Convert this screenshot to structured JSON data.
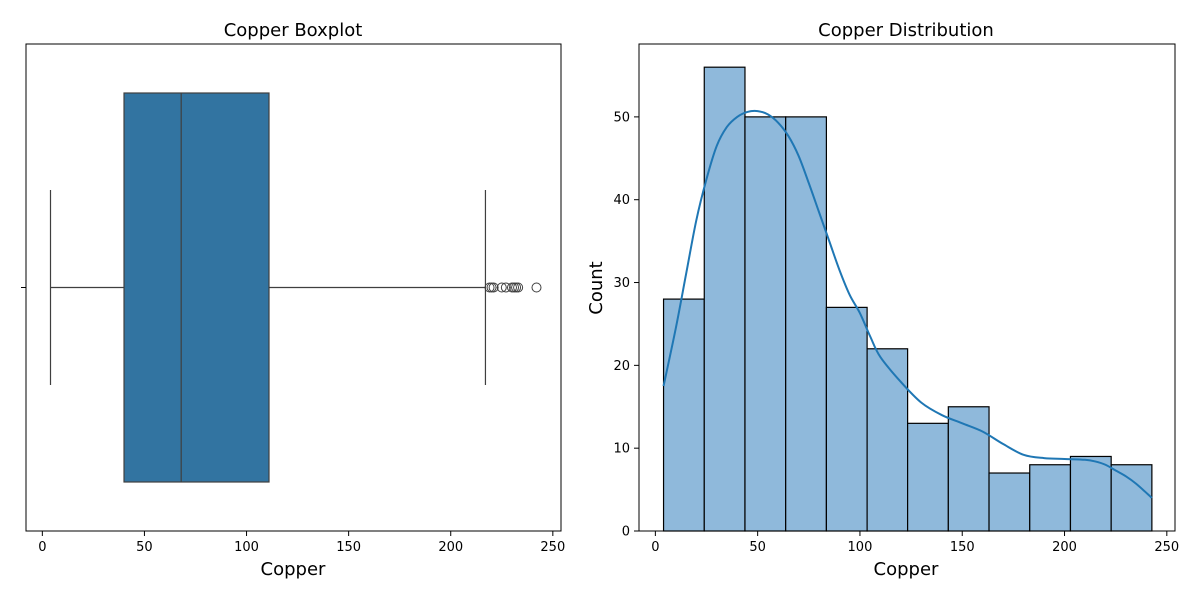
{
  "chart_data": [
    {
      "type": "box",
      "title": "Copper Boxplot",
      "xlabel": "Copper",
      "ylabel": "",
      "xlim": [
        -8,
        254
      ],
      "xticks": [
        0,
        50,
        100,
        150,
        200,
        250
      ],
      "box": {
        "whisker_low": 4,
        "q1": 40,
        "median": 68,
        "q3": 111,
        "whisker_high": 217
      },
      "outliers": [
        219,
        220,
        221,
        225,
        227,
        230,
        231,
        232,
        233,
        242
      ],
      "color": "#3274a1"
    },
    {
      "type": "histogram",
      "title": "Copper Distribution",
      "xlabel": "Copper",
      "ylabel": "Count",
      "xlim": [
        -8,
        254
      ],
      "ylim": [
        0,
        58.8
      ],
      "xticks": [
        0,
        50,
        100,
        150,
        200,
        250
      ],
      "yticks": [
        0,
        10,
        20,
        30,
        40,
        50
      ],
      "bins": [
        {
          "start": 4,
          "end": 23.9,
          "count": 28
        },
        {
          "start": 23.9,
          "end": 43.8,
          "count": 56
        },
        {
          "start": 43.8,
          "end": 63.7,
          "count": 50
        },
        {
          "start": 63.7,
          "end": 83.6,
          "count": 50
        },
        {
          "start": 83.6,
          "end": 103.5,
          "count": 27
        },
        {
          "start": 103.5,
          "end": 123.3,
          "count": 22
        },
        {
          "start": 123.3,
          "end": 143.2,
          "count": 13
        },
        {
          "start": 143.2,
          "end": 163.1,
          "count": 15
        },
        {
          "start": 163.1,
          "end": 183.0,
          "count": 7
        },
        {
          "start": 183.0,
          "end": 202.9,
          "count": 8
        },
        {
          "start": 202.9,
          "end": 222.8,
          "count": 9
        },
        {
          "start": 222.8,
          "end": 242.7,
          "count": 8
        }
      ],
      "kde": {
        "x": [
          4,
          10,
          15,
          20,
          25,
          30,
          35,
          40,
          45,
          50,
          55,
          60,
          65,
          70,
          75,
          80,
          85,
          90,
          95,
          100,
          105,
          110,
          120,
          130,
          140,
          150,
          160,
          170,
          180,
          190,
          200,
          210,
          215,
          220,
          225,
          230,
          235,
          242.7
        ],
        "y": [
          17.5,
          24.5,
          31,
          37.5,
          42.5,
          46.5,
          48.8,
          50,
          50.6,
          50.7,
          50.3,
          49.3,
          47.7,
          45.3,
          42,
          38.5,
          35,
          31.5,
          28.5,
          26.3,
          23.5,
          21,
          18,
          15.5,
          14,
          13,
          12,
          10.5,
          9.2,
          8.8,
          8.7,
          8.6,
          8.4,
          8.0,
          7.3,
          6.6,
          5.7,
          4.0
        ]
      },
      "bar_color": "#8fb9db",
      "line_color": "#1f77b4"
    }
  ]
}
